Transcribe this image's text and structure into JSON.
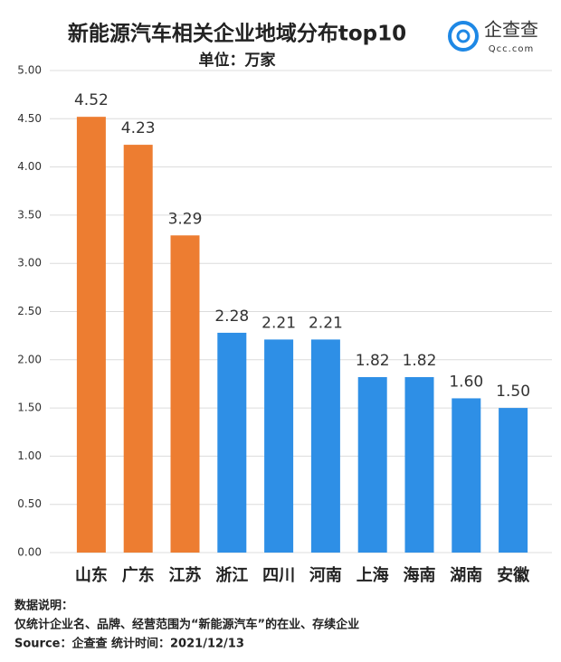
{
  "chart_data": {
    "type": "bar",
    "title": "新能源汽车相关企业地域分布top10",
    "subtitle": "单位：万家",
    "categories": [
      "山东",
      "广东",
      "江苏",
      "浙江",
      "四川",
      "河南",
      "上海",
      "海南",
      "湖南",
      "安徽"
    ],
    "values": [
      4.52,
      4.23,
      3.29,
      2.28,
      2.21,
      2.21,
      1.82,
      1.82,
      1.6,
      1.5
    ],
    "value_labels": [
      "4.52",
      "4.23",
      "3.29",
      "2.28",
      "2.21",
      "2.21",
      "1.82",
      "1.82",
      "1.60",
      "1.50"
    ],
    "colors": [
      "#ed7d31",
      "#ed7d31",
      "#ed7d31",
      "#2e8fe6",
      "#2e8fe6",
      "#2e8fe6",
      "#2e8fe6",
      "#2e8fe6",
      "#2e8fe6",
      "#2e8fe6"
    ],
    "ylim": [
      0,
      5
    ],
    "yticks": [
      {
        "value": 0,
        "label": "0.00"
      },
      {
        "value": 0.5,
        "label": "0.50"
      },
      {
        "value": 1,
        "label": "1.00"
      },
      {
        "value": 1.5,
        "label": "1.50"
      },
      {
        "value": 2,
        "label": "2.00"
      },
      {
        "value": 2.5,
        "label": "2.50"
      },
      {
        "value": 3,
        "label": "3.00"
      },
      {
        "value": 3.5,
        "label": "3.50"
      },
      {
        "value": 4,
        "label": "4.00"
      },
      {
        "value": 4.5,
        "label": "4.50"
      },
      {
        "value": 5,
        "label": "5.00"
      }
    ],
    "grid": true,
    "notes": [
      "数据说明：",
      "仅统计企业名、品牌、经营范围为“新能源汽车”的在业、存续企业",
      "Source：企查查  统计时间：2021/12/13"
    ]
  },
  "logo": {
    "name": "企查查",
    "url": "Qcc.com"
  }
}
